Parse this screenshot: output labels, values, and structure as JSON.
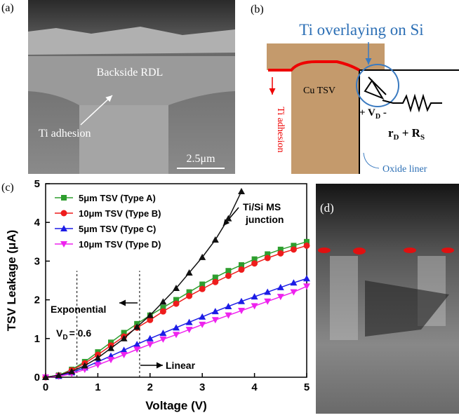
{
  "panel_a": {
    "label": "(a)",
    "rdl": "Backside RDL",
    "ti": "Ti adhesion",
    "scale": "2.5μm"
  },
  "panel_b": {
    "label": "(b)",
    "title": "Ti overlaying on Si",
    "cu": "Cu TSV",
    "ti": "Ti adhesion",
    "vd": [
      "+ V",
      "D",
      " -"
    ],
    "r": [
      "r",
      "D",
      " + R",
      "S"
    ],
    "oxide": "Oxide liner"
  },
  "panel_d": {
    "label": "(d)"
  },
  "chart_data": {
    "type": "line",
    "label": "(c)",
    "xlabel": "Voltage (V)",
    "ylabel": "TSV Leakage (μA)",
    "xlim": [
      0,
      5
    ],
    "ylim": [
      0,
      5
    ],
    "xticks": [
      0,
      1,
      2,
      3,
      4,
      5
    ],
    "yticks": [
      0,
      1,
      2,
      3,
      4,
      5
    ],
    "x": [
      0,
      0.25,
      0.5,
      0.75,
      1,
      1.25,
      1.5,
      1.75,
      2,
      2.25,
      2.5,
      2.75,
      3,
      3.25,
      3.5,
      3.75,
      4,
      4.25,
      4.5,
      4.75,
      5
    ],
    "series": [
      {
        "name": "5μm TSV (Type A)",
        "color": "#2e9e2e",
        "marker": "square",
        "values": [
          0,
          0.05,
          0.2,
          0.4,
          0.65,
          0.9,
          1.15,
          1.38,
          1.6,
          1.8,
          2.0,
          2.2,
          2.4,
          2.58,
          2.75,
          2.9,
          3.05,
          3.18,
          3.3,
          3.4,
          3.5
        ]
      },
      {
        "name": "10μm TSV (Type B)",
        "color": "#ee1c1c",
        "marker": "circle",
        "values": [
          0,
          0.04,
          0.18,
          0.36,
          0.58,
          0.82,
          1.05,
          1.28,
          1.48,
          1.7,
          1.9,
          2.1,
          2.28,
          2.46,
          2.62,
          2.78,
          2.94,
          3.08,
          3.2,
          3.3,
          3.4
        ]
      },
      {
        "name": "5μm TSV (Type C)",
        "color": "#1c1ce6",
        "marker": "triangle-up",
        "values": [
          0,
          0.03,
          0.12,
          0.25,
          0.4,
          0.55,
          0.7,
          0.85,
          1.0,
          1.14,
          1.28,
          1.42,
          1.56,
          1.7,
          1.83,
          1.96,
          2.08,
          2.2,
          2.32,
          2.44,
          2.55
        ]
      },
      {
        "name": "10μm TSV (Type D)",
        "color": "#ee22ee",
        "marker": "triangle-down",
        "values": [
          0,
          0.02,
          0.09,
          0.2,
          0.32,
          0.45,
          0.58,
          0.72,
          0.85,
          0.98,
          1.1,
          1.23,
          1.36,
          1.48,
          1.6,
          1.72,
          1.84,
          1.96,
          2.08,
          2.2,
          2.35
        ]
      },
      {
        "color": "#111111",
        "marker": "triangle-up",
        "values": [
          0,
          0.05,
          0.15,
          0.3,
          0.5,
          0.75,
          1.0,
          1.3,
          1.6,
          1.95,
          2.3,
          2.7,
          3.1,
          3.55,
          4.1,
          4.8,
          null,
          null,
          null,
          null,
          null
        ]
      }
    ],
    "vlines": [
      0.6,
      1.8
    ],
    "annotations": {
      "junction": [
        "Ti/Si MS",
        "junction"
      ],
      "exponential": "Exponential",
      "vd": [
        "V",
        "D",
        "= 0.6"
      ],
      "linear": "Linear"
    }
  }
}
